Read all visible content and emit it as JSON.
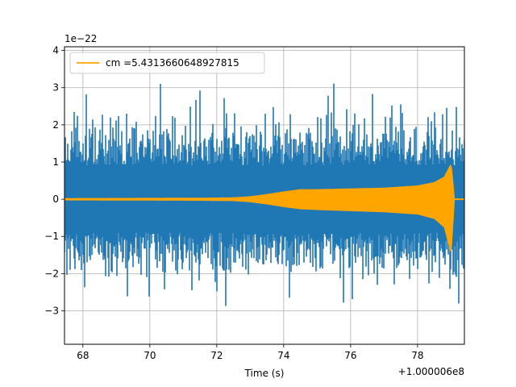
{
  "chart_data": {
    "type": "line",
    "xlabel": "Time (s)",
    "x_offset_label": "+1.000006e8",
    "y_scale_label": "1e−22",
    "xlim": [
      67.45,
      79.4
    ],
    "ylim": [
      -3.9,
      4.1
    ],
    "xticks": [
      68,
      70,
      72,
      74,
      76,
      78
    ],
    "yticks": [
      -3,
      -2,
      -1,
      0,
      1,
      2,
      3,
      4
    ],
    "xtick_labels": [
      "68",
      "70",
      "72",
      "74",
      "76",
      "78"
    ],
    "ytick_labels": [
      "−3",
      "−2",
      "−1",
      "0",
      "1",
      "2",
      "3",
      "4"
    ],
    "grid": true,
    "legend_placement": "upper left",
    "series": [
      {
        "kind": "noise-strain",
        "color": "#1f77b4",
        "x_range": [
          67.45,
          79.4
        ],
        "typical_peak_upper": [
          1.5,
          2.6
        ],
        "typical_peak_lower": [
          -1.5,
          -2.5
        ],
        "max": 3.4,
        "min": -3.5
      },
      {
        "kind": "chirp-template",
        "name": "cm =5.4313660648927815",
        "color": "#ffa500",
        "envelope_x": [
          67.45,
          71.5,
          72.5,
          73.0,
          73.5,
          74.0,
          74.5,
          75.0,
          76.0,
          77.0,
          78.0,
          78.5,
          78.8,
          79.0,
          79.05,
          79.1,
          79.4
        ],
        "envelope_upper": [
          0.02,
          0.03,
          0.04,
          0.07,
          0.13,
          0.2,
          0.26,
          0.26,
          0.28,
          0.3,
          0.36,
          0.45,
          0.6,
          0.95,
          0.55,
          0.0,
          0.0
        ],
        "envelope_lower": [
          -0.02,
          -0.03,
          -0.04,
          -0.07,
          -0.13,
          -0.2,
          -0.26,
          -0.28,
          -0.31,
          -0.34,
          -0.4,
          -0.52,
          -0.75,
          -1.45,
          -0.8,
          0.0,
          0.0
        ]
      }
    ]
  },
  "colors": {
    "noise": "#1f77b4",
    "template": "#ffa500",
    "grid": "#b0b0b0"
  }
}
